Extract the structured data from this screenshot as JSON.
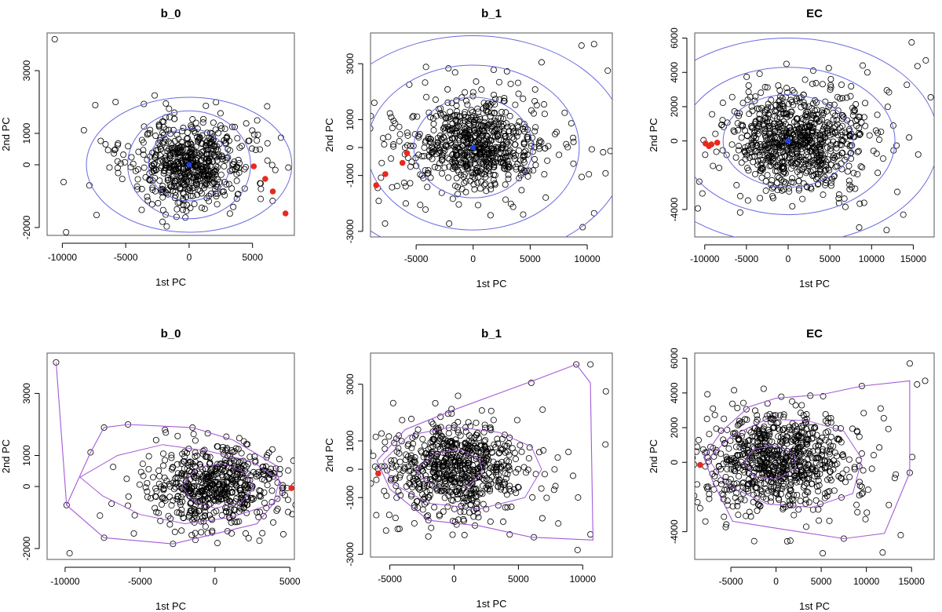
{
  "figure": {
    "description_free": true,
    "colors": {
      "point": "#000000",
      "outlier": "#e8291e",
      "center": "#1f3fe0",
      "ellipse": "#6a6adf",
      "hull": "#a35ad6"
    }
  },
  "chart_data": [
    {
      "type": "scatter",
      "title": "b_0",
      "xlabel": "1st PC",
      "ylabel": "2nd PC",
      "xlim": [
        -11200,
        8300
      ],
      "ylim": [
        -2250,
        4200
      ],
      "xticks": [
        -10000,
        -5000,
        0,
        5000
      ],
      "yticks": [
        -2000,
        0,
        1000,
        3000
      ],
      "center": [
        0,
        0
      ],
      "ellipses": [
        [
          3200,
          1150
        ],
        [
          4850,
          1720
        ],
        [
          8100,
          2150
        ]
      ],
      "outliers": [
        [
          5100,
          -50
        ],
        [
          6000,
          -450
        ],
        [
          6600,
          -850
        ],
        [
          7600,
          -1550
        ]
      ],
      "extra_points": [
        [
          -10600,
          4000
        ],
        [
          -9700,
          -2150
        ],
        [
          -9900,
          -550
        ],
        [
          -7300,
          -1600
        ],
        [
          -7400,
          1900
        ],
        [
          -5800,
          2000
        ],
        [
          -8300,
          1100
        ]
      ],
      "cloud": {
        "count": 620,
        "seed": 11,
        "sx": 2000,
        "sy": 650,
        "mx": 0,
        "my": 50
      }
    },
    {
      "type": "scatter",
      "title": "b_1",
      "xlabel": "1st PC",
      "ylabel": "2nd PC",
      "xlim": [
        -9000,
        12200
      ],
      "ylim": [
        -3200,
        4100
      ],
      "xticks": [
        -5000,
        0,
        5000,
        10000
      ],
      "yticks": [
        -3000,
        -1000,
        0,
        1000,
        3000
      ],
      "center": [
        0,
        0
      ],
      "ellipses": [
        [
          5200,
          1800
        ],
        [
          9300,
          2950
        ],
        [
          13500,
          4000
        ]
      ],
      "outliers": [
        [
          -5800,
          -200
        ],
        [
          -6200,
          -550
        ],
        [
          -7700,
          -950
        ],
        [
          -8500,
          -1350
        ]
      ],
      "extra_points": [
        [
          9500,
          3650
        ],
        [
          10600,
          3700
        ],
        [
          11800,
          2750
        ],
        [
          9600,
          -2850
        ],
        [
          10600,
          -2350
        ],
        [
          6000,
          3050
        ],
        [
          8800,
          200
        ]
      ],
      "cloud": {
        "count": 720,
        "seed": 23,
        "sx": 2700,
        "sy": 780,
        "mx": 300,
        "my": 50
      }
    },
    {
      "type": "scatter",
      "title": "EC",
      "xlabel": "1st PC",
      "ylabel": "2nd PC",
      "xlim": [
        -11200,
        17500
      ],
      "ylim": [
        -5600,
        6300
      ],
      "xticks": [
        -10000,
        -5000,
        0,
        5000,
        10000,
        15000
      ],
      "yticks": [
        -4000,
        0,
        2000,
        4000,
        6000
      ],
      "center": [
        0,
        0
      ],
      "ellipses": [
        [
          7800,
          2700
        ],
        [
          12800,
          4300
        ],
        [
          18000,
          6000
        ]
      ],
      "outliers": [
        [
          -9900,
          -150
        ],
        [
          -9500,
          -300
        ],
        [
          -9200,
          -200
        ],
        [
          -8500,
          -100
        ]
      ],
      "extra_points": [
        [
          14800,
          5750
        ],
        [
          16500,
          4700
        ],
        [
          13800,
          -4300
        ],
        [
          11800,
          -5200
        ],
        [
          14500,
          200
        ],
        [
          9500,
          4000
        ]
      ],
      "cloud": {
        "count": 820,
        "seed": 37,
        "sx": 3700,
        "sy": 1350,
        "mx": 900,
        "my": 0
      }
    },
    {
      "type": "scatter",
      "title": "b_0",
      "xlabel": "1st PC",
      "ylabel": "2nd PC",
      "xlim": [
        -11200,
        5300
      ],
      "ylim": [
        -2350,
        4300
      ],
      "xticks": [
        -10000,
        -5000,
        0,
        5000
      ],
      "yticks": [
        -2000,
        0,
        1000,
        3000
      ],
      "contours": [
        [
          [
            -2200,
            0
          ],
          [
            -1200,
            600
          ],
          [
            500,
            750
          ],
          [
            2000,
            450
          ],
          [
            2600,
            0
          ],
          [
            1800,
            -500
          ],
          [
            0,
            -700
          ],
          [
            -1500,
            -450
          ]
        ],
        [
          [
            -9000,
            300
          ],
          [
            -6500,
            1000
          ],
          [
            -3500,
            1350
          ],
          [
            -500,
            1150
          ],
          [
            2500,
            800
          ],
          [
            4300,
            200
          ],
          [
            3900,
            -550
          ],
          [
            1000,
            -1000
          ],
          [
            -2000,
            -1200
          ],
          [
            -5000,
            -900
          ],
          [
            -7500,
            -300
          ]
        ]
      ],
      "hull": [
        [
          -10600,
          4000
        ],
        [
          -9900,
          -600
        ],
        [
          -7400,
          -1650
        ],
        [
          -2800,
          -1850
        ],
        [
          2800,
          -1200
        ],
        [
          4500,
          -200
        ],
        [
          4000,
          700
        ],
        [
          1200,
          1500
        ],
        [
          -1500,
          1900
        ],
        [
          -5800,
          2000
        ],
        [
          -7400,
          1900
        ],
        [
          -8300,
          1100
        ],
        [
          -9900,
          -600
        ]
      ],
      "outliers": [
        [
          5100,
          -50
        ]
      ],
      "extra_points": [
        [
          -10600,
          4000
        ],
        [
          -9700,
          -2150
        ],
        [
          -9900,
          -600
        ],
        [
          -7400,
          -1650
        ],
        [
          -2800,
          -1850
        ],
        [
          4500,
          -200
        ],
        [
          -5800,
          2000
        ],
        [
          -7400,
          1900
        ],
        [
          -8300,
          1100
        ],
        [
          -1500,
          1900
        ]
      ],
      "cloud": {
        "count": 620,
        "seed": 51,
        "sx": 1900,
        "sy": 620,
        "mx": 300,
        "my": 0
      }
    },
    {
      "type": "scatter",
      "title": "b_1",
      "xlabel": "1st PC",
      "ylabel": "2nd PC",
      "xlim": [
        -6500,
        12300
      ],
      "ylim": [
        -3100,
        4100
      ],
      "xticks": [
        -5000,
        0,
        5000,
        10000
      ],
      "yticks": [
        -3000,
        -1000,
        0,
        1000,
        3000
      ],
      "contours": [
        [
          [
            -3000,
            0
          ],
          [
            -1500,
            550
          ],
          [
            500,
            700
          ],
          [
            2000,
            350
          ],
          [
            2200,
            -150
          ],
          [
            800,
            -650
          ],
          [
            -1200,
            -650
          ],
          [
            -2500,
            -300
          ]
        ],
        [
          [
            -5500,
            300
          ],
          [
            -3500,
            1200
          ],
          [
            0,
            1500
          ],
          [
            3500,
            1300
          ],
          [
            6000,
            800
          ],
          [
            6800,
            0
          ],
          [
            5500,
            -1000
          ],
          [
            2000,
            -1400
          ],
          [
            -2000,
            -1200
          ],
          [
            -4800,
            -500
          ]
        ]
      ],
      "hull": [
        [
          -6000,
          300
        ],
        [
          -3800,
          1400
        ],
        [
          0,
          2100
        ],
        [
          6000,
          3100
        ],
        [
          9500,
          3700
        ],
        [
          10600,
          3050
        ],
        [
          10800,
          -2500
        ],
        [
          6000,
          -2400
        ],
        [
          2000,
          -2000
        ],
        [
          -2000,
          -1800
        ],
        [
          -5000,
          -700
        ]
      ],
      "outliers": [
        [
          -5900,
          -150
        ]
      ],
      "extra_points": [
        [
          9500,
          3700
        ],
        [
          10600,
          3700
        ],
        [
          11800,
          2750
        ],
        [
          9600,
          -2850
        ],
        [
          10600,
          -2300
        ],
        [
          6000,
          3050
        ],
        [
          6200,
          -2400
        ],
        [
          -2000,
          -1800
        ]
      ],
      "cloud": {
        "count": 720,
        "seed": 67,
        "sx": 2500,
        "sy": 760,
        "mx": 0,
        "my": 0
      }
    },
    {
      "type": "scatter",
      "title": "EC",
      "xlabel": "1st PC",
      "ylabel": "2nd PC",
      "xlim": [
        -9000,
        17500
      ],
      "ylim": [
        -5600,
        6300
      ],
      "xticks": [
        -5000,
        0,
        5000,
        10000,
        15000
      ],
      "yticks": [
        -4000,
        0,
        2000,
        4000,
        6000
      ],
      "contours": [
        [
          [
            -3500,
            0
          ],
          [
            -2500,
            750
          ],
          [
            0,
            1000
          ],
          [
            2000,
            450
          ],
          [
            2200,
            -350
          ],
          [
            0,
            -1000
          ],
          [
            -2500,
            -800
          ]
        ],
        [
          [
            -7500,
            200
          ],
          [
            -5000,
            1500
          ],
          [
            -1000,
            2500
          ],
          [
            3500,
            2400
          ],
          [
            7500,
            1800
          ],
          [
            9500,
            200
          ],
          [
            8500,
            -1800
          ],
          [
            4000,
            -2600
          ],
          [
            -1000,
            -2400
          ],
          [
            -5500,
            -1300
          ]
        ]
      ],
      "hull": [
        [
          -8000,
          300
        ],
        [
          -6000,
          1800
        ],
        [
          -3000,
          3200
        ],
        [
          0,
          3700
        ],
        [
          5000,
          3900
        ],
        [
          9500,
          4400
        ],
        [
          14800,
          4700
        ],
        [
          14800,
          -600
        ],
        [
          12000,
          -4100
        ],
        [
          7500,
          -4400
        ],
        [
          0,
          -3800
        ],
        [
          -4800,
          -3400
        ],
        [
          -7000,
          -1100
        ]
      ],
      "outliers": [
        [
          -8400,
          -150
        ]
      ],
      "extra_points": [
        [
          14800,
          5700
        ],
        [
          16500,
          4700
        ],
        [
          13800,
          -4200
        ],
        [
          11800,
          -5200
        ],
        [
          14800,
          -600
        ],
        [
          9500,
          4400
        ],
        [
          7500,
          -4400
        ]
      ],
      "cloud": {
        "count": 820,
        "seed": 83,
        "sx": 3500,
        "sy": 1350,
        "mx": 0,
        "my": 0
      }
    }
  ]
}
